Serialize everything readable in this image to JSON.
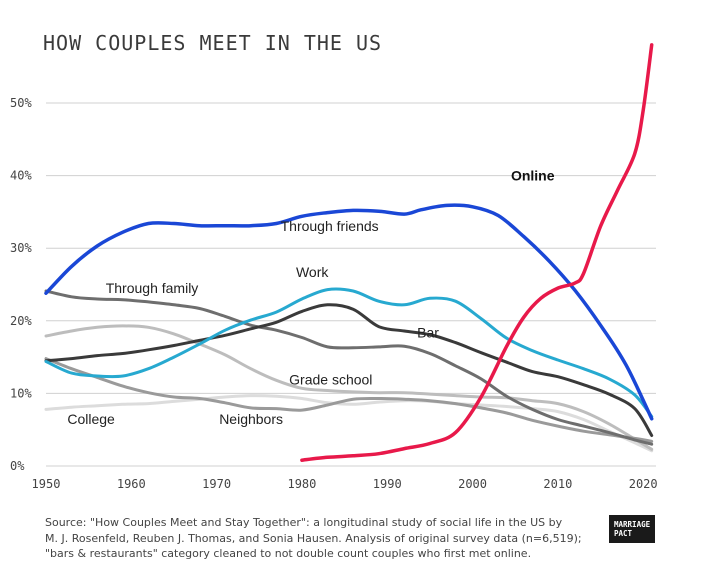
{
  "title": "HOW COUPLES MEET IN THE US",
  "source_lines": [
    "Source: \"How Couples Meet and Stay Together\": a longitudinal study of social life in the US by",
    "M. J. Rosenfeld, Reuben J. Thomas, and Sonia Hausen. Analysis of original survey data (n=6,519);",
    "\"bars & restaurants\" category cleaned to not double count couples who first met online."
  ],
  "logo_lines": [
    "MARRIAGE",
    "PACT"
  ],
  "chart_data": {
    "type": "line",
    "title": "HOW COUPLES MEET IN THE US",
    "xlabel": "",
    "ylabel": "",
    "xlim": [
      1950,
      2022
    ],
    "ylim": [
      0,
      50
    ],
    "x_ticks": [
      1950,
      1960,
      1970,
      1980,
      1990,
      2000,
      2010,
      2020
    ],
    "x_tick_labels": [
      "1950",
      "1960",
      "1970",
      "1980",
      "1990",
      "2000",
      "2010",
      "2020"
    ],
    "y_ticks": [
      0,
      10,
      20,
      30,
      40,
      50
    ],
    "y_tick_labels": [
      "0%",
      "10%",
      "20%",
      "30%",
      "40%",
      "50%"
    ],
    "grid": "horizontal",
    "legend": "inline labels",
    "series": [
      {
        "name": "Through friends",
        "color": "#1a47d6",
        "width": 3.5,
        "x": [
          1950,
          1953,
          1956,
          1959,
          1962,
          1965,
          1968,
          1971,
          1974,
          1977,
          1980,
          1983,
          1986,
          1989,
          1992,
          1994,
          1997,
          2000,
          2003,
          2006,
          2009,
          2012,
          2015,
          2018,
          2021
        ],
        "y": [
          23.8,
          27.5,
          30.3,
          32.2,
          33.4,
          33.4,
          33.1,
          33.1,
          33.1,
          33.4,
          34.4,
          34.9,
          35.2,
          35.1,
          34.7,
          35.3,
          35.9,
          35.7,
          34.5,
          31.6,
          28.2,
          24.2,
          19.4,
          13.9,
          6.5
        ],
        "label_x": 1977.5,
        "label_y": 32.4
      },
      {
        "name": "Online",
        "color": "#e8194a",
        "width": 3.5,
        "x": [
          1980,
          1983,
          1986,
          1989,
          1992,
          1995,
          1998,
          2001,
          2004,
          2006,
          2008,
          2010,
          2012,
          2013,
          2015,
          2017,
          2019,
          2020,
          2021
        ],
        "y": [
          0.8,
          1.2,
          1.4,
          1.7,
          2.4,
          3.1,
          4.6,
          9.5,
          16.5,
          20.5,
          23.1,
          24.5,
          25.2,
          26.5,
          33.0,
          38.0,
          43.0,
          49.0,
          58.0
        ],
        "label_x": 2004.5,
        "label_y": 39.3
      },
      {
        "name": "Through family",
        "color": "#6e6e6e",
        "width": 3,
        "x": [
          1950,
          1953,
          1956,
          1959,
          1962,
          1965,
          1968,
          1971,
          1974,
          1977,
          1980,
          1983,
          1986,
          1989,
          1992,
          1995,
          1998,
          2001,
          2004,
          2007,
          2010,
          2013,
          2016,
          2019,
          2021
        ],
        "y": [
          24.1,
          23.3,
          23.0,
          22.9,
          22.6,
          22.2,
          21.7,
          20.6,
          19.4,
          18.7,
          17.7,
          16.4,
          16.3,
          16.4,
          16.5,
          15.5,
          13.8,
          12.0,
          9.6,
          7.8,
          6.4,
          5.5,
          4.6,
          3.6,
          3.0
        ],
        "label_x": 1957,
        "label_y": 23.8
      },
      {
        "name": "Work",
        "color": "#27a9d0",
        "width": 3,
        "x": [
          1950,
          1953,
          1956,
          1959,
          1962,
          1965,
          1968,
          1971,
          1974,
          1977,
          1980,
          1983,
          1986,
          1989,
          1992,
          1995,
          1998,
          2001,
          2004,
          2007,
          2010,
          2013,
          2016,
          2019,
          2021
        ],
        "y": [
          14.4,
          12.8,
          12.4,
          12.4,
          13.4,
          15.0,
          16.8,
          18.7,
          20.1,
          21.2,
          23.0,
          24.3,
          24.1,
          22.7,
          22.2,
          23.1,
          22.7,
          20.3,
          17.6,
          15.9,
          14.6,
          13.4,
          12.0,
          9.8,
          6.8
        ],
        "label_x": 1979.3,
        "label_y": 26.0
      },
      {
        "name": "Bar",
        "color": "#3a3a3a",
        "width": 3,
        "x": [
          1950,
          1953,
          1956,
          1959,
          1962,
          1965,
          1968,
          1971,
          1974,
          1977,
          1980,
          1983,
          1986,
          1989,
          1992,
          1995,
          1998,
          2001,
          2004,
          2007,
          2010,
          2013,
          2016,
          2019,
          2021
        ],
        "y": [
          14.5,
          14.8,
          15.2,
          15.5,
          16.0,
          16.6,
          17.3,
          18.0,
          18.9,
          19.8,
          21.3,
          22.2,
          21.6,
          19.2,
          18.6,
          18.1,
          17.0,
          15.6,
          14.3,
          13.0,
          12.3,
          11.2,
          9.9,
          7.9,
          4.2
        ],
        "label_x": 1993.5,
        "label_y": 17.7
      },
      {
        "name": "Grade school",
        "color": "#bdbdbd",
        "width": 3,
        "x": [
          1950,
          1953,
          1956,
          1959,
          1962,
          1965,
          1968,
          1971,
          1974,
          1977,
          1980,
          1983,
          1986,
          1989,
          1992,
          1995,
          1998,
          2001,
          2004,
          2007,
          2010,
          2013,
          2016,
          2019,
          2021
        ],
        "y": [
          17.9,
          18.6,
          19.1,
          19.3,
          19.1,
          18.2,
          16.8,
          15.3,
          13.4,
          11.8,
          10.7,
          10.4,
          10.2,
          10.1,
          10.1,
          9.9,
          9.7,
          9.5,
          9.4,
          9.0,
          8.6,
          7.5,
          5.8,
          3.7,
          2.3
        ],
        "label_x": 1978.5,
        "label_y": 11.2
      },
      {
        "name": "Neighbors",
        "color": "#9a9a9a",
        "width": 3,
        "x": [
          1950,
          1953,
          1956,
          1959,
          1962,
          1965,
          1968,
          1971,
          1974,
          1977,
          1980,
          1983,
          1986,
          1989,
          1992,
          1995,
          1998,
          2001,
          2004,
          2007,
          2010,
          2013,
          2016,
          2019,
          2021
        ],
        "y": [
          14.8,
          13.4,
          12.2,
          11.0,
          10.1,
          9.5,
          9.3,
          8.7,
          8.0,
          7.9,
          7.7,
          8.4,
          9.2,
          9.3,
          9.2,
          9.0,
          8.6,
          8.0,
          7.3,
          6.3,
          5.5,
          4.8,
          4.3,
          3.8,
          3.4
        ],
        "label_x": 1970.3,
        "label_y": 5.8
      },
      {
        "name": "College",
        "color": "#dcdcdc",
        "width": 3,
        "x": [
          1950,
          1953,
          1956,
          1959,
          1962,
          1965,
          1968,
          1971,
          1974,
          1977,
          1980,
          1983,
          1986,
          1989,
          1992,
          1995,
          1998,
          2001,
          2004,
          2007,
          2010,
          2013,
          2016,
          2019,
          2021
        ],
        "y": [
          7.8,
          8.1,
          8.3,
          8.5,
          8.6,
          8.9,
          9.2,
          9.5,
          9.7,
          9.6,
          9.3,
          8.7,
          8.5,
          8.8,
          9.0,
          8.9,
          8.6,
          8.4,
          8.2,
          7.9,
          7.5,
          6.4,
          4.8,
          3.2,
          2.1
        ],
        "label_x": 1952.5,
        "label_y": 5.8
      }
    ]
  }
}
